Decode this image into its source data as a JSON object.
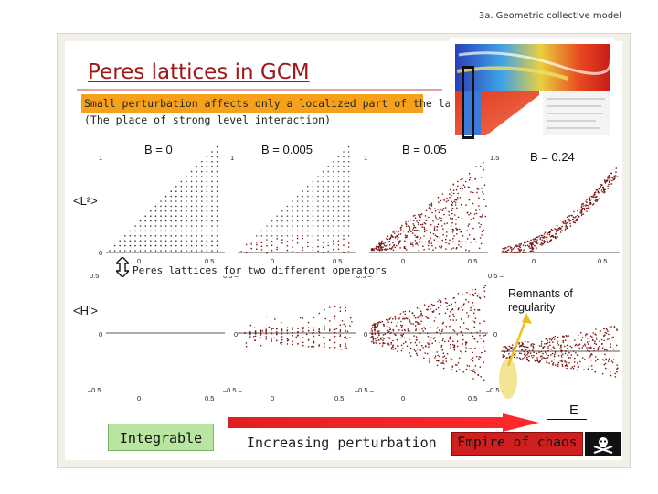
{
  "header": {
    "section_label": "3a. Geometric collective model"
  },
  "slide": {
    "title": "Peres lattices in GCM",
    "subtitle": "Small perturbation affects only a localized part of the lattice",
    "subnote": "(The place of strong level interaction)"
  },
  "columns": [
    {
      "label": "B = 0"
    },
    {
      "label": "B = 0.005"
    },
    {
      "label": "B = 0.05"
    },
    {
      "label": "B = 0.24"
    }
  ],
  "operators": {
    "top": "<L²>",
    "bottom": "<H'>"
  },
  "axis_ticks": {
    "top_y": [
      "1",
      "1",
      "1",
      "1.5"
    ],
    "top_y_zero": "0",
    "top_x": [
      "0",
      "0.5"
    ],
    "mid_y": [
      "0.5",
      "0.5 –",
      "0.5 –",
      "0.5 –"
    ],
    "bottom_y": [
      "–0.5",
      "–0.5 –",
      "–0.5 –",
      "–0.5 –"
    ],
    "bottom_zero": "0",
    "bottom_x": [
      "0",
      "0.5"
    ]
  },
  "notes": {
    "operators_note": "Peres lattices for two different operators",
    "remnants": "Remnants of regularity"
  },
  "bottom_bar": {
    "integrable": "Integrable",
    "increasing": "Increasing perturbation",
    "chaos": "Empire of chaos",
    "energy_axis": "E"
  },
  "colors": {
    "title": "#a01818",
    "highlight": "#f5a11b",
    "lattice_dots": "#7a1410",
    "integrable_box": "#b8e6a0",
    "chaos_box": "#d01f1f",
    "arrow": "#e02020"
  },
  "icons": {
    "double_arrow": "up-down-arrow-icon",
    "flag": "pirate-flag-icon"
  }
}
